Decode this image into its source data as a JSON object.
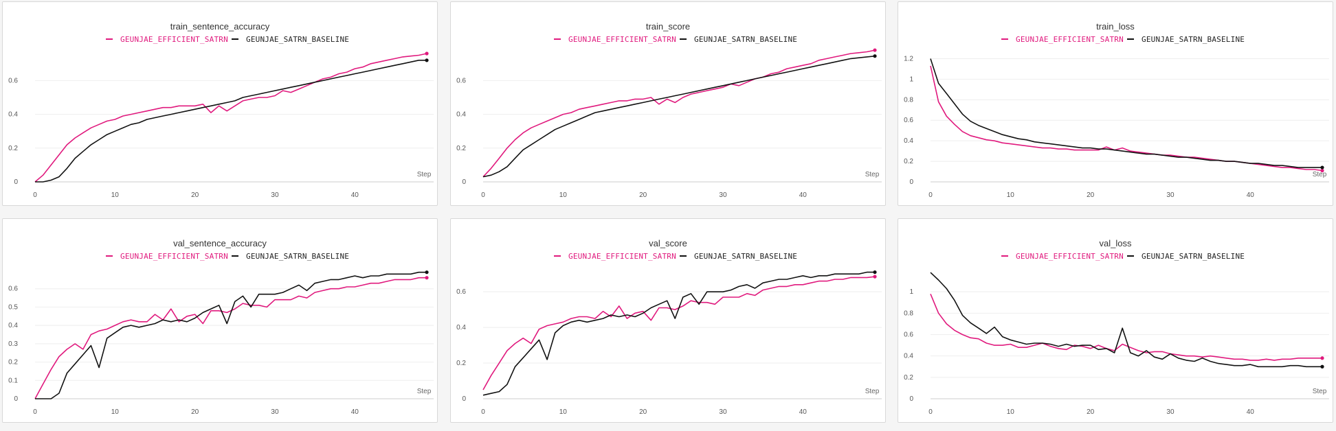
{
  "legend": {
    "series_a": "GEUNJAE_EFFICIENT_SATRN",
    "series_b": "GEUNJAE_SATRN_BASELINE"
  },
  "colors": {
    "series_a": "#e0197d",
    "series_b": "#111111",
    "grid": "#eeeeee",
    "axis": "#cccccc"
  },
  "chart_data": [
    {
      "type": "line",
      "title": "train_sentence_accuracy",
      "xlabel": "Step",
      "xlim": [
        0,
        49
      ],
      "ylim": [
        0,
        0.76
      ],
      "xticks": [
        0,
        10,
        20,
        30,
        40
      ],
      "yticks": [
        0,
        0.2,
        0.4,
        0.6
      ],
      "ytick_labels": [
        "0",
        "0.2",
        "0.4",
        "0.6"
      ],
      "series": [
        {
          "name": "GEUNJAE_EFFICIENT_SATRN",
          "values": [
            0.0,
            0.04,
            0.1,
            0.16,
            0.22,
            0.26,
            0.29,
            0.32,
            0.34,
            0.36,
            0.37,
            0.39,
            0.4,
            0.41,
            0.42,
            0.43,
            0.44,
            0.44,
            0.45,
            0.45,
            0.45,
            0.46,
            0.41,
            0.45,
            0.42,
            0.45,
            0.48,
            0.49,
            0.5,
            0.5,
            0.51,
            0.54,
            0.53,
            0.55,
            0.57,
            0.59,
            0.61,
            0.62,
            0.64,
            0.65,
            0.67,
            0.68,
            0.7,
            0.71,
            0.72,
            0.73,
            0.74,
            0.745,
            0.75,
            0.76
          ]
        },
        {
          "name": "GEUNJAE_SATRN_BASELINE",
          "values": [
            0.0,
            0.0,
            0.01,
            0.03,
            0.08,
            0.14,
            0.18,
            0.22,
            0.25,
            0.28,
            0.3,
            0.32,
            0.34,
            0.35,
            0.37,
            0.38,
            0.39,
            0.4,
            0.41,
            0.42,
            0.43,
            0.44,
            0.45,
            0.46,
            0.47,
            0.48,
            0.5,
            0.51,
            0.52,
            0.53,
            0.54,
            0.55,
            0.56,
            0.57,
            0.58,
            0.59,
            0.6,
            0.61,
            0.62,
            0.63,
            0.64,
            0.65,
            0.66,
            0.67,
            0.68,
            0.69,
            0.7,
            0.71,
            0.72,
            0.72
          ]
        }
      ]
    },
    {
      "type": "line",
      "title": "train_score",
      "xlabel": "Step",
      "xlim": [
        0,
        49
      ],
      "ylim": [
        0,
        0.76
      ],
      "xticks": [
        0,
        10,
        20,
        30,
        40
      ],
      "yticks": [
        0,
        0.2,
        0.4,
        0.6
      ],
      "ytick_labels": [
        "0",
        "0.2",
        "0.4",
        "0.6"
      ],
      "series": [
        {
          "name": "GEUNJAE_EFFICIENT_SATRN",
          "values": [
            0.03,
            0.08,
            0.14,
            0.2,
            0.25,
            0.29,
            0.32,
            0.34,
            0.36,
            0.38,
            0.4,
            0.41,
            0.43,
            0.44,
            0.45,
            0.46,
            0.47,
            0.48,
            0.48,
            0.49,
            0.49,
            0.5,
            0.46,
            0.49,
            0.47,
            0.5,
            0.52,
            0.53,
            0.54,
            0.55,
            0.56,
            0.58,
            0.57,
            0.59,
            0.61,
            0.62,
            0.64,
            0.65,
            0.67,
            0.68,
            0.69,
            0.7,
            0.72,
            0.73,
            0.74,
            0.75,
            0.76,
            0.765,
            0.77,
            0.78
          ]
        },
        {
          "name": "GEUNJAE_SATRN_BASELINE",
          "values": [
            0.03,
            0.04,
            0.06,
            0.09,
            0.14,
            0.19,
            0.22,
            0.25,
            0.28,
            0.31,
            0.33,
            0.35,
            0.37,
            0.39,
            0.41,
            0.42,
            0.43,
            0.44,
            0.45,
            0.46,
            0.47,
            0.48,
            0.49,
            0.5,
            0.51,
            0.52,
            0.53,
            0.54,
            0.55,
            0.56,
            0.57,
            0.58,
            0.59,
            0.6,
            0.61,
            0.62,
            0.63,
            0.64,
            0.65,
            0.66,
            0.67,
            0.68,
            0.69,
            0.7,
            0.71,
            0.72,
            0.73,
            0.735,
            0.74,
            0.745
          ]
        }
      ]
    },
    {
      "type": "line",
      "title": "train_loss",
      "xlabel": "Step",
      "xlim": [
        0,
        49
      ],
      "ylim": [
        0,
        1.25
      ],
      "xticks": [
        0,
        10,
        20,
        30,
        40
      ],
      "yticks": [
        0,
        0.2,
        0.4,
        0.6,
        0.8,
        1.0,
        1.2
      ],
      "ytick_labels": [
        "0",
        "0.2",
        "0.4",
        "0.6",
        "0.8",
        "1",
        "1.2"
      ],
      "series": [
        {
          "name": "GEUNJAE_EFFICIENT_SATRN",
          "values": [
            1.13,
            0.78,
            0.64,
            0.56,
            0.49,
            0.45,
            0.43,
            0.41,
            0.4,
            0.38,
            0.37,
            0.36,
            0.35,
            0.34,
            0.33,
            0.33,
            0.32,
            0.32,
            0.31,
            0.31,
            0.31,
            0.31,
            0.34,
            0.31,
            0.33,
            0.3,
            0.29,
            0.28,
            0.27,
            0.26,
            0.26,
            0.25,
            0.24,
            0.24,
            0.23,
            0.22,
            0.21,
            0.2,
            0.2,
            0.19,
            0.18,
            0.17,
            0.16,
            0.15,
            0.14,
            0.14,
            0.13,
            0.12,
            0.12,
            0.11
          ]
        },
        {
          "name": "GEUNJAE_SATRN_BASELINE",
          "values": [
            1.2,
            0.96,
            0.86,
            0.76,
            0.66,
            0.59,
            0.55,
            0.52,
            0.49,
            0.46,
            0.44,
            0.42,
            0.41,
            0.39,
            0.38,
            0.37,
            0.36,
            0.35,
            0.34,
            0.33,
            0.33,
            0.32,
            0.32,
            0.31,
            0.3,
            0.29,
            0.28,
            0.27,
            0.27,
            0.26,
            0.25,
            0.24,
            0.24,
            0.23,
            0.22,
            0.21,
            0.21,
            0.2,
            0.2,
            0.19,
            0.18,
            0.18,
            0.17,
            0.16,
            0.16,
            0.15,
            0.14,
            0.14,
            0.14,
            0.14
          ]
        }
      ]
    },
    {
      "type": "line",
      "title": "val_sentence_accuracy",
      "xlabel": "Step",
      "xlim": [
        0,
        49
      ],
      "ylim": [
        0,
        0.7
      ],
      "xticks": [
        0,
        10,
        20,
        30,
        40
      ],
      "yticks": [
        0,
        0.1,
        0.2,
        0.3,
        0.4,
        0.5,
        0.6
      ],
      "ytick_labels": [
        "0",
        "0.1",
        "0.2",
        "0.3",
        "0.4",
        "0.5",
        "0.6"
      ],
      "series": [
        {
          "name": "GEUNJAE_EFFICIENT_SATRN",
          "values": [
            0.0,
            0.08,
            0.16,
            0.23,
            0.27,
            0.3,
            0.27,
            0.35,
            0.37,
            0.38,
            0.4,
            0.42,
            0.43,
            0.42,
            0.42,
            0.46,
            0.43,
            0.49,
            0.42,
            0.45,
            0.46,
            0.41,
            0.48,
            0.48,
            0.47,
            0.49,
            0.52,
            0.51,
            0.51,
            0.5,
            0.54,
            0.54,
            0.54,
            0.56,
            0.55,
            0.58,
            0.59,
            0.6,
            0.6,
            0.61,
            0.61,
            0.62,
            0.63,
            0.63,
            0.64,
            0.65,
            0.65,
            0.65,
            0.66,
            0.66
          ]
        },
        {
          "name": "GEUNJAE_SATRN_BASELINE",
          "values": [
            0.0,
            0.0,
            0.0,
            0.03,
            0.14,
            0.19,
            0.24,
            0.29,
            0.17,
            0.33,
            0.36,
            0.39,
            0.4,
            0.39,
            0.4,
            0.41,
            0.43,
            0.42,
            0.43,
            0.42,
            0.44,
            0.47,
            0.49,
            0.51,
            0.41,
            0.53,
            0.56,
            0.5,
            0.57,
            0.57,
            0.57,
            0.58,
            0.6,
            0.62,
            0.59,
            0.63,
            0.64,
            0.65,
            0.65,
            0.66,
            0.67,
            0.66,
            0.67,
            0.67,
            0.68,
            0.68,
            0.68,
            0.68,
            0.69,
            0.69
          ]
        }
      ]
    },
    {
      "type": "line",
      "title": "val_score",
      "xlabel": "Step",
      "xlim": [
        0,
        49
      ],
      "ylim": [
        0,
        0.72
      ],
      "xticks": [
        0,
        10,
        20,
        30,
        40
      ],
      "yticks": [
        0,
        0.2,
        0.4,
        0.6
      ],
      "ytick_labels": [
        "0",
        "0.2",
        "0.4",
        "0.6"
      ],
      "series": [
        {
          "name": "GEUNJAE_EFFICIENT_SATRN",
          "values": [
            0.05,
            0.13,
            0.2,
            0.27,
            0.31,
            0.34,
            0.31,
            0.39,
            0.41,
            0.42,
            0.43,
            0.45,
            0.46,
            0.46,
            0.45,
            0.49,
            0.46,
            0.52,
            0.45,
            0.48,
            0.49,
            0.44,
            0.51,
            0.51,
            0.5,
            0.52,
            0.55,
            0.54,
            0.54,
            0.53,
            0.57,
            0.57,
            0.57,
            0.59,
            0.58,
            0.61,
            0.62,
            0.63,
            0.63,
            0.64,
            0.64,
            0.65,
            0.66,
            0.66,
            0.67,
            0.67,
            0.68,
            0.68,
            0.68,
            0.685
          ]
        },
        {
          "name": "GEUNJAE_SATRN_BASELINE",
          "values": [
            0.02,
            0.03,
            0.04,
            0.08,
            0.18,
            0.23,
            0.28,
            0.33,
            0.22,
            0.37,
            0.41,
            0.43,
            0.44,
            0.43,
            0.44,
            0.45,
            0.47,
            0.46,
            0.47,
            0.46,
            0.48,
            0.51,
            0.53,
            0.55,
            0.45,
            0.57,
            0.59,
            0.53,
            0.6,
            0.6,
            0.6,
            0.61,
            0.63,
            0.64,
            0.62,
            0.65,
            0.66,
            0.67,
            0.67,
            0.68,
            0.69,
            0.68,
            0.69,
            0.69,
            0.7,
            0.7,
            0.7,
            0.7,
            0.71,
            0.71
          ]
        }
      ]
    },
    {
      "type": "line",
      "title": "val_loss",
      "xlabel": "Step",
      "xlim": [
        0,
        49
      ],
      "ylim": [
        0,
        1.2
      ],
      "xticks": [
        0,
        10,
        20,
        30,
        40
      ],
      "yticks": [
        0,
        0.2,
        0.4,
        0.6,
        0.8,
        1.0
      ],
      "ytick_labels": [
        "0",
        "0.2",
        "0.4",
        "0.6",
        "0.8",
        "1"
      ],
      "series": [
        {
          "name": "GEUNJAE_EFFICIENT_SATRN",
          "values": [
            0.98,
            0.8,
            0.7,
            0.64,
            0.6,
            0.57,
            0.56,
            0.52,
            0.5,
            0.5,
            0.51,
            0.48,
            0.48,
            0.5,
            0.52,
            0.49,
            0.47,
            0.46,
            0.5,
            0.49,
            0.47,
            0.5,
            0.47,
            0.45,
            0.51,
            0.48,
            0.45,
            0.43,
            0.44,
            0.44,
            0.42,
            0.41,
            0.4,
            0.4,
            0.39,
            0.4,
            0.39,
            0.38,
            0.37,
            0.37,
            0.36,
            0.36,
            0.37,
            0.36,
            0.37,
            0.37,
            0.38,
            0.38,
            0.38,
            0.38
          ]
        },
        {
          "name": "GEUNJAE_SATRN_BASELINE",
          "values": [
            1.18,
            1.11,
            1.03,
            0.92,
            0.78,
            0.71,
            0.66,
            0.61,
            0.67,
            0.58,
            0.55,
            0.53,
            0.51,
            0.52,
            0.52,
            0.51,
            0.49,
            0.51,
            0.49,
            0.5,
            0.5,
            0.46,
            0.47,
            0.43,
            0.66,
            0.43,
            0.4,
            0.45,
            0.39,
            0.37,
            0.42,
            0.38,
            0.36,
            0.35,
            0.38,
            0.35,
            0.33,
            0.32,
            0.31,
            0.31,
            0.32,
            0.3,
            0.3,
            0.3,
            0.3,
            0.31,
            0.31,
            0.3,
            0.3,
            0.3
          ]
        }
      ]
    }
  ]
}
